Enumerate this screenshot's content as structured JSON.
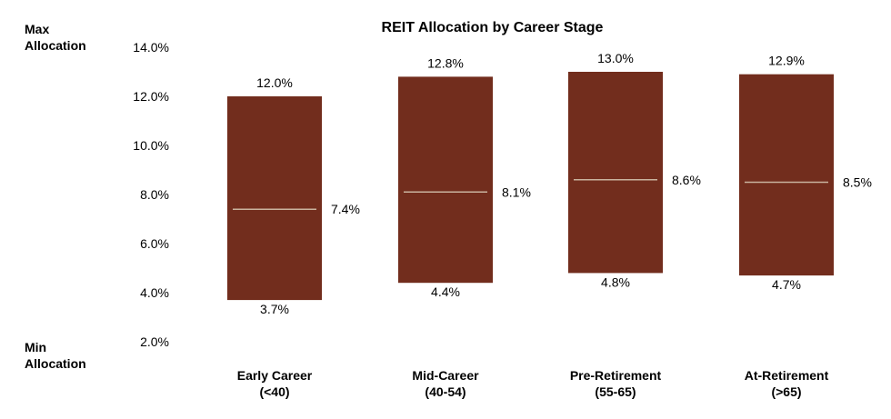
{
  "side_labels": {
    "max": [
      "Max",
      "Allocation"
    ],
    "min": [
      "Min",
      "Allocation"
    ]
  },
  "colors": {
    "bar": "#722d1d",
    "median_line": "#c9b39e",
    "text": "#000000"
  },
  "chart_data": {
    "type": "bar",
    "subtype": "floating-range",
    "title": "REIT Allocation by Career Stage",
    "xlabel": "",
    "ylabel": "",
    "ylim": [
      2.0,
      14.0
    ],
    "yticks": [
      2.0,
      4.0,
      6.0,
      8.0,
      10.0,
      12.0,
      14.0
    ],
    "ytick_labels": [
      "2.0%",
      "4.0%",
      "6.0%",
      "8.0%",
      "10.0%",
      "12.0%",
      "14.0%"
    ],
    "grid": false,
    "legend": "none",
    "categories": [
      [
        "Early Career",
        "(<40)"
      ],
      [
        "Mid-Career",
        "(40-54)"
      ],
      [
        "Pre-Retirement",
        "(55-65)"
      ],
      [
        "At-Retirement",
        "(>65)"
      ]
    ],
    "series": [
      {
        "values": [
          3.7,
          4.4,
          4.8,
          4.7
        ],
        "labels": [
          "3.7%",
          "4.4%",
          "4.8%",
          "4.7%"
        ]
      },
      {
        "values": [
          12.0,
          12.8,
          13.0,
          12.9
        ],
        "labels": [
          "12.0%",
          "12.8%",
          "13.0%",
          "12.9%"
        ]
      },
      {
        "values": [
          7.4,
          8.1,
          8.6,
          8.5
        ],
        "labels": [
          "7.4%",
          "8.1%",
          "8.6%",
          "8.5%"
        ]
      }
    ]
  }
}
